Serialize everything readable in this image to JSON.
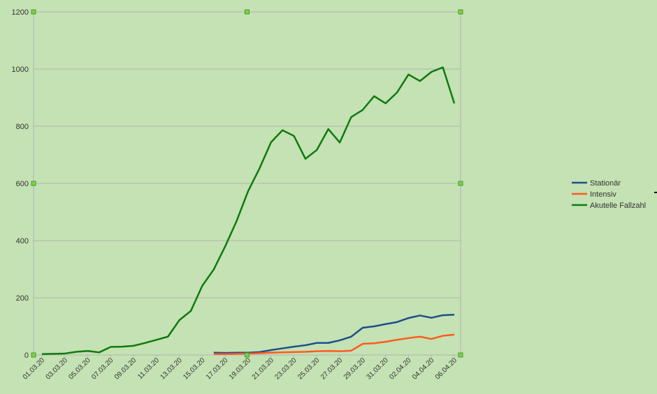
{
  "chart_data": {
    "type": "line",
    "title": "",
    "xlabel": "",
    "ylabel": "",
    "ylim": [
      0,
      1200
    ],
    "yticks": [
      0,
      200,
      400,
      600,
      800,
      1000,
      1200
    ],
    "grid": true,
    "legend_position": "right",
    "x": [
      "01.03.20",
      "02.03.20",
      "03.03.20",
      "04.03.20",
      "05.03.20",
      "06.03.20",
      "07.03.20",
      "08.03.20",
      "09.03.20",
      "10.03.20",
      "11.03.20",
      "12.03.20",
      "13.03.20",
      "14.03.20",
      "15.03.20",
      "16.03.20",
      "17.03.20",
      "18.03.20",
      "19.03.20",
      "20.03.20",
      "21.03.20",
      "22.03.20",
      "23.03.20",
      "24.03.20",
      "25.03.20",
      "26.03.20",
      "27.03.20",
      "28.03.20",
      "29.03.20",
      "30.03.20",
      "31.03.20",
      "01.04.20",
      "02.04.20",
      "03.04.20",
      "04.04.20",
      "05.04.20",
      "06.04.20"
    ],
    "x_tick_labels": [
      "01.03.20",
      "03.03.20",
      "05.03.20",
      "07.03.20",
      "09.03.20",
      "11.03.20",
      "13.03.20",
      "15.03.20",
      "17.03.20",
      "19.03.20",
      "21.03.20",
      "23.03.20",
      "25.03.20",
      "27.03.20",
      "29.03.20",
      "31.03.20",
      "02.04.20",
      "04.04.20",
      "06.04.20"
    ],
    "series": [
      {
        "name": "Stationär",
        "color": "#1f4e8c",
        "values": [
          null,
          null,
          null,
          null,
          null,
          null,
          null,
          null,
          null,
          null,
          null,
          null,
          null,
          null,
          null,
          8,
          7,
          8,
          8,
          10,
          17,
          23,
          29,
          34,
          42,
          42,
          51,
          64,
          95,
          100,
          108,
          115,
          129,
          138,
          130,
          139,
          141
        ]
      },
      {
        "name": "Intensiv",
        "color": "#ff5a1f",
        "values": [
          null,
          null,
          null,
          null,
          null,
          null,
          null,
          null,
          null,
          null,
          null,
          null,
          null,
          null,
          null,
          3,
          3,
          4,
          5,
          6,
          8,
          9,
          10,
          11,
          13,
          14,
          13,
          15,
          39,
          41,
          46,
          53,
          59,
          64,
          56,
          67,
          71
        ]
      },
      {
        "name": "Akutelle Fallzahl",
        "color": "#0f7a0f",
        "values": [
          3,
          4,
          5,
          11,
          14,
          9,
          28,
          29,
          32,
          42,
          53,
          64,
          122,
          154,
          242,
          299,
          380,
          469,
          573,
          653,
          744,
          786,
          766,
          686,
          717,
          790,
          743,
          832,
          857,
          905,
          880,
          918,
          981,
          958,
          990,
          1006,
          880
        ]
      }
    ]
  }
}
